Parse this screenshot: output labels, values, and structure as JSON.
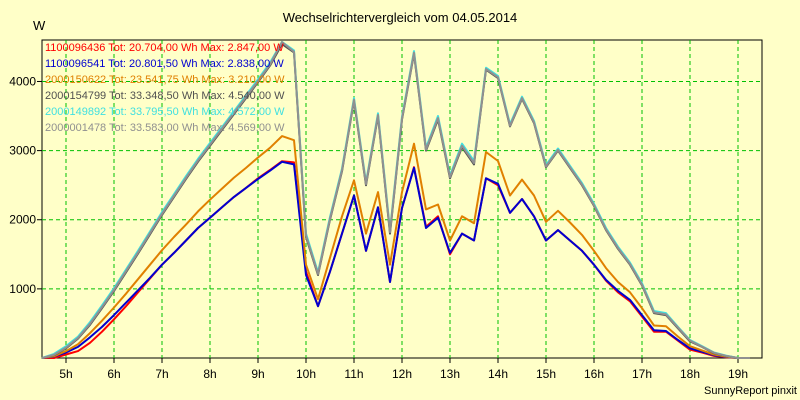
{
  "chart_data": {
    "type": "line",
    "title": "Wechselrichtervergleich vom 04.05.2014",
    "ylabel": "W",
    "xlabel": "",
    "footer": "SunnyReport pinxit",
    "xlim": [
      4.5,
      19.5
    ],
    "ylim": [
      0,
      4600
    ],
    "grid": true,
    "legend_position": "top-left",
    "x_ticks": [
      {
        "value": 5,
        "label": "5h"
      },
      {
        "value": 6,
        "label": "6h"
      },
      {
        "value": 7,
        "label": "7h"
      },
      {
        "value": 8,
        "label": "8h"
      },
      {
        "value": 9,
        "label": "9h"
      },
      {
        "value": 10,
        "label": "10h"
      },
      {
        "value": 11,
        "label": "11h"
      },
      {
        "value": 12,
        "label": "12h"
      },
      {
        "value": 13,
        "label": "13h"
      },
      {
        "value": 14,
        "label": "14h"
      },
      {
        "value": 15,
        "label": "15h"
      },
      {
        "value": 16,
        "label": "16h"
      },
      {
        "value": 17,
        "label": "17h"
      },
      {
        "value": 18,
        "label": "18h"
      },
      {
        "value": 19,
        "label": "19h"
      }
    ],
    "y_ticks": [
      {
        "value": 1000,
        "label": "1000"
      },
      {
        "value": 2000,
        "label": "2000"
      },
      {
        "value": 3000,
        "label": "3000"
      },
      {
        "value": 4000,
        "label": "4000"
      }
    ],
    "x": [
      4.5,
      4.75,
      5.0,
      5.25,
      5.5,
      5.75,
      6.0,
      6.25,
      6.5,
      6.75,
      7.0,
      7.25,
      7.5,
      7.75,
      8.0,
      8.25,
      8.5,
      8.75,
      9.0,
      9.25,
      9.5,
      9.75,
      10.0,
      10.25,
      10.5,
      10.75,
      11.0,
      11.25,
      11.5,
      11.75,
      12.0,
      12.25,
      12.5,
      12.75,
      13.0,
      13.25,
      13.5,
      13.75,
      14.0,
      14.25,
      14.5,
      14.75,
      15.0,
      15.25,
      15.5,
      15.75,
      16.0,
      16.25,
      16.5,
      16.75,
      17.0,
      17.25,
      17.5,
      17.75,
      18.0,
      18.25,
      18.5,
      18.75,
      19.0,
      19.25
    ],
    "series": [
      {
        "name": "1100096436",
        "legend": "1100096436 Tot: 20.704,00 Wh Max: 2.847,00 W",
        "color": "#ff0000",
        "values": [
          0,
          0,
          50,
          100,
          220,
          380,
          560,
          750,
          950,
          1150,
          1350,
          1520,
          1700,
          1880,
          2030,
          2180,
          2330,
          2460,
          2600,
          2720,
          2847,
          2830,
          1250,
          750,
          1250,
          1800,
          2350,
          1550,
          2180,
          1100,
          2170,
          2760,
          1900,
          2050,
          1500,
          1800,
          1700,
          2600,
          2500,
          2100,
          2300,
          2050,
          1700,
          1850,
          1700,
          1550,
          1350,
          1120,
          950,
          820,
          600,
          380,
          380,
          250,
          120,
          80,
          30,
          10,
          0,
          0
        ]
      },
      {
        "name": "1100096541",
        "legend": "1100096541 Tot: 20.801,50 Wh Max: 2.838,00 W",
        "color": "#0000d0",
        "values": [
          0,
          20,
          80,
          160,
          300,
          450,
          620,
          800,
          980,
          1160,
          1350,
          1520,
          1700,
          1880,
          2030,
          2180,
          2330,
          2460,
          2590,
          2710,
          2838,
          2800,
          1200,
          750,
          1250,
          1800,
          2350,
          1550,
          2180,
          1100,
          2170,
          2750,
          1880,
          2030,
          1520,
          1800,
          1700,
          2600,
          2520,
          2100,
          2300,
          2050,
          1700,
          1850,
          1700,
          1550,
          1350,
          1130,
          970,
          840,
          620,
          400,
          390,
          260,
          140,
          90,
          40,
          15,
          0,
          0
        ]
      },
      {
        "name": "2000150622",
        "legend": "2000150622 Tot: 23.541,75 Wh Max: 3.210,00 W",
        "color": "#e08000",
        "values": [
          0,
          25,
          100,
          200,
          360,
          540,
          730,
          930,
          1140,
          1350,
          1560,
          1750,
          1930,
          2120,
          2290,
          2450,
          2610,
          2750,
          2900,
          3040,
          3210,
          3150,
          1350,
          850,
          1450,
          2050,
          2570,
          1800,
          2400,
          1350,
          2400,
          3100,
          2150,
          2220,
          1700,
          2050,
          1950,
          2980,
          2850,
          2350,
          2580,
          2350,
          1970,
          2130,
          1960,
          1780,
          1550,
          1300,
          1100,
          950,
          720,
          470,
          460,
          310,
          170,
          110,
          50,
          20,
          0,
          0
        ]
      },
      {
        "name": "2000154799",
        "legend": "2000154799 Tot: 33.348,50 Wh Max: 4.540,00 W",
        "color": "#505050",
        "values": [
          0,
          40,
          140,
          280,
          480,
          720,
          970,
          1240,
          1510,
          1790,
          2070,
          2330,
          2590,
          2840,
          3070,
          3300,
          3530,
          3760,
          3990,
          4230,
          4540,
          4420,
          1750,
          1200,
          2000,
          2700,
          3720,
          2500,
          3500,
          1800,
          3450,
          4400,
          3000,
          3450,
          2600,
          3050,
          2800,
          4170,
          4050,
          3350,
          3750,
          3400,
          2760,
          3000,
          2750,
          2500,
          2200,
          1850,
          1580,
          1350,
          1050,
          650,
          620,
          430,
          240,
          160,
          70,
          30,
          0,
          0
        ]
      },
      {
        "name": "2000149892",
        "legend": "2000149892 Tot: 33.795,50 Wh Max: 4.572,00 W",
        "color": "#40e0e0",
        "values": [
          0,
          60,
          170,
          310,
          520,
          760,
          1010,
          1280,
          1550,
          1830,
          2110,
          2370,
          2630,
          2880,
          3110,
          3340,
          3570,
          3800,
          4030,
          4270,
          4572,
          4450,
          1800,
          1240,
          2040,
          2740,
          3760,
          2540,
          3540,
          1850,
          3490,
          4440,
          3040,
          3500,
          2640,
          3100,
          2850,
          4200,
          4080,
          3380,
          3780,
          3430,
          2790,
          3030,
          2780,
          2530,
          2230,
          1880,
          1610,
          1380,
          1080,
          680,
          650,
          450,
          260,
          170,
          80,
          35,
          0,
          0
        ]
      },
      {
        "name": "2000001478",
        "legend": "2000001478 Tot: 33.583,00 Wh Max: 4.569,00 W",
        "color": "#909090",
        "values": [
          0,
          45,
          150,
          290,
          495,
          735,
          985,
          1255,
          1525,
          1805,
          2085,
          2345,
          2605,
          2855,
          3085,
          3315,
          3545,
          3775,
          4005,
          4245,
          4569,
          4430,
          1770,
          1215,
          2015,
          2715,
          3735,
          2515,
          3515,
          1820,
          3465,
          4415,
          3015,
          3470,
          2615,
          3070,
          2820,
          4180,
          4060,
          3360,
          3760,
          3410,
          2770,
          3010,
          2760,
          2510,
          2210,
          1860,
          1590,
          1360,
          1060,
          660,
          630,
          440,
          250,
          165,
          75,
          32,
          0,
          0
        ]
      }
    ]
  }
}
